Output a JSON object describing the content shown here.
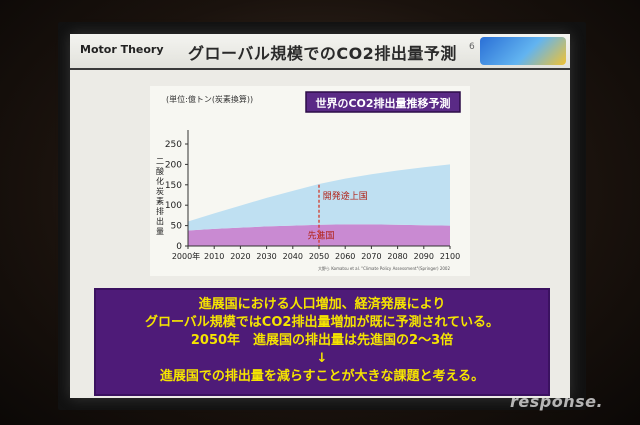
{
  "slide": {
    "brand": "Motor Theory",
    "title": "グローバル規模でのCO2排出量予測",
    "page_number": "6"
  },
  "chart_data": {
    "type": "area",
    "title": "世界のCO2排出量推移予測",
    "unit_label": "(単位:億トン(炭素換算))",
    "ylabel": "二酸化炭素排出量",
    "xlabel": "",
    "x": [
      2000,
      2010,
      2020,
      2030,
      2040,
      2050,
      2060,
      2070,
      2080,
      2090,
      2100
    ],
    "x_tick_labels": [
      "2000年",
      "2010",
      "2020",
      "2030",
      "2040",
      "2050",
      "2060",
      "2070",
      "2080",
      "2090",
      "2100"
    ],
    "y_ticks": [
      0,
      50,
      100,
      150,
      200,
      250
    ],
    "ylim": [
      0,
      250
    ],
    "xlim": [
      2000,
      2100
    ],
    "stacked": true,
    "series": [
      {
        "name": "先進国",
        "color": "#c98ad2",
        "values": [
          38,
          42,
          45,
          48,
          50,
          52,
          53,
          53,
          52,
          51,
          50
        ]
      },
      {
        "name": "開発途上国",
        "color": "#bfe0f2",
        "values": [
          22,
          38,
          54,
          70,
          85,
          100,
          112,
          123,
          133,
          142,
          150
        ]
      }
    ],
    "highlight_x": 2050,
    "highlight_color": "#d03a2a",
    "source_note": "大野ら Komatsu et al. \"Climate Policy Assessment\"(Springer) 2002"
  },
  "message": {
    "lines": [
      "進展国における人口増加、経済発展により",
      "グローバル規模ではCO2排出量増加が既に予測されている。",
      "2050年　進展国の排出量は先進国の2～3倍",
      "↓",
      "進展国での排出量を減らすことが大きな課題と考える。"
    ],
    "background": "#4e1b78",
    "text_color": "#f5e400"
  },
  "watermark": "response."
}
